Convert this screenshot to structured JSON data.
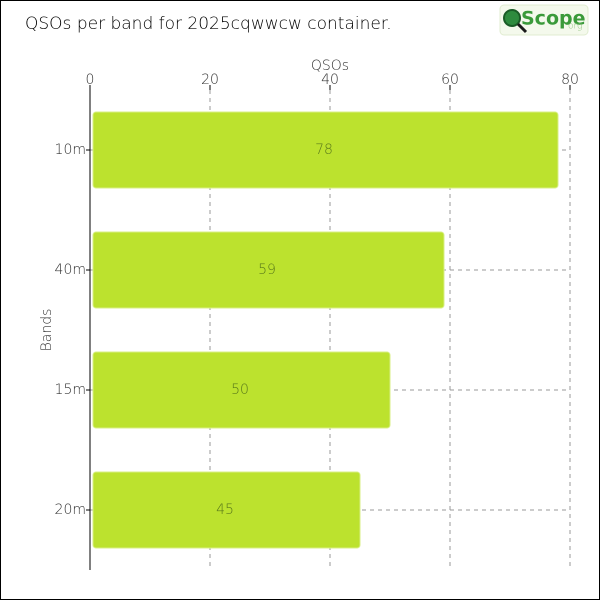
{
  "chart_data": {
    "type": "hbar",
    "title": "QSOs per band for 2025cqwwcw container.",
    "x_label": "QSOs",
    "y_label": "Bands",
    "categories": [
      "10m",
      "40m",
      "15m",
      "20m"
    ],
    "values": [
      78,
      59,
      50,
      45
    ],
    "color": "#bce22e",
    "xlim": [
      0,
      80
    ],
    "xticks": [
      0,
      20,
      40,
      60,
      80
    ],
    "grid": true
  },
  "logo": {
    "text": "Scope",
    "suffix": "org"
  }
}
